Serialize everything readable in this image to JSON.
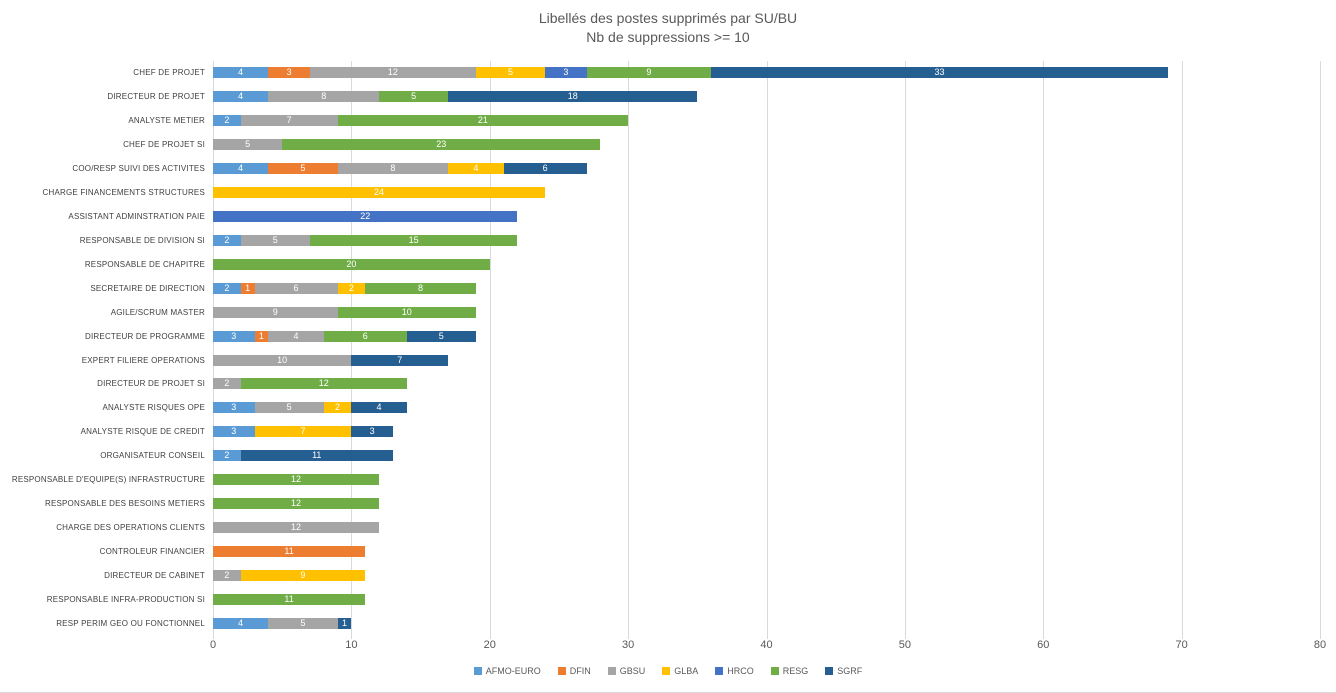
{
  "chart_data": {
    "type": "bar",
    "orientation": "horizontal",
    "stacked": true,
    "title": "Libellés des postes supprimés par SU/BU",
    "subtitle": "Nb de suppressions >= 10",
    "xlim": [
      0,
      80
    ],
    "xticks": [
      0,
      10,
      20,
      30,
      40,
      50,
      60,
      70,
      80
    ],
    "grid": true,
    "legend_position": "bottom",
    "background_color": "#ffffff",
    "gridline_color": "#d9d9d9",
    "title_color": "#595959",
    "legend": [
      {
        "name": "AFMO-EURO",
        "color": "#5B9BD5"
      },
      {
        "name": "DFIN",
        "color": "#ED7D31"
      },
      {
        "name": "GBSU",
        "color": "#A5A5A5"
      },
      {
        "name": "GLBA",
        "color": "#FFC000"
      },
      {
        "name": "HRCO",
        "color": "#4472C4"
      },
      {
        "name": "RESG",
        "color": "#70AD47"
      },
      {
        "name": "SGRF",
        "color": "#255E91"
      }
    ],
    "categories": [
      "CHEF DE PROJET",
      "DIRECTEUR DE PROJET",
      "ANALYSTE METIER",
      "CHEF DE PROJET SI",
      "COO/RESP SUIVI DES ACTIVITES",
      "CHARGE FINANCEMENTS STRUCTURES",
      "ASSISTANT ADMINSTRATION PAIE",
      "RESPONSABLE DE DIVISION SI",
      "RESPONSABLE DE CHAPITRE",
      "SECRETAIRE DE DIRECTION",
      "AGILE/SCRUM MASTER",
      "DIRECTEUR DE PROGRAMME",
      "EXPERT FILIERE OPERATIONS",
      "DIRECTEUR DE PROJET SI",
      "ANALYSTE RISQUES OPE",
      "ANALYSTE RISQUE DE CREDIT",
      "ORGANISATEUR CONSEIL",
      "RESPONSABLE D'EQUIPE(S) INFRASTRUCTURE",
      "RESPONSABLE DES BESOINS METIERS",
      "CHARGE DES OPERATIONS CLIENTS",
      "CONTROLEUR FINANCIER",
      "DIRECTEUR DE CABINET",
      "RESPONSABLE INFRA-PRODUCTION SI",
      "RESP PERIM GEO OU FONCTIONNEL"
    ],
    "series": [
      {
        "name": "AFMO-EURO",
        "values": [
          4,
          4,
          2,
          0,
          4,
          0,
          0,
          2,
          0,
          2,
          0,
          3,
          0,
          0,
          3,
          3,
          2,
          0,
          0,
          0,
          0,
          0,
          0,
          4
        ]
      },
      {
        "name": "DFIN",
        "values": [
          3,
          0,
          0,
          0,
          5,
          0,
          0,
          0,
          0,
          1,
          0,
          1,
          0,
          0,
          0,
          0,
          0,
          0,
          0,
          0,
          11,
          0,
          0,
          0
        ]
      },
      {
        "name": "GBSU",
        "values": [
          12,
          8,
          7,
          5,
          8,
          0,
          0,
          5,
          0,
          6,
          9,
          4,
          10,
          2,
          5,
          0,
          0,
          0,
          0,
          12,
          0,
          2,
          0,
          5
        ]
      },
      {
        "name": "GLBA",
        "values": [
          5,
          0,
          0,
          0,
          4,
          24,
          0,
          0,
          0,
          2,
          0,
          0,
          0,
          0,
          2,
          7,
          0,
          0,
          0,
          0,
          0,
          9,
          0,
          0
        ]
      },
      {
        "name": "HRCO",
        "values": [
          3,
          0,
          0,
          0,
          0,
          0,
          22,
          0,
          0,
          0,
          0,
          0,
          0,
          0,
          0,
          0,
          0,
          0,
          0,
          0,
          0,
          0,
          0,
          0
        ]
      },
      {
        "name": "RESG",
        "values": [
          9,
          5,
          21,
          23,
          0,
          0,
          0,
          15,
          20,
          8,
          10,
          6,
          0,
          12,
          0,
          0,
          0,
          12,
          12,
          0,
          0,
          0,
          11,
          0
        ]
      },
      {
        "name": "SGRF",
        "values": [
          33,
          18,
          0,
          0,
          6,
          0,
          0,
          0,
          0,
          0,
          0,
          5,
          7,
          0,
          4,
          3,
          11,
          0,
          0,
          0,
          0,
          0,
          0,
          1
        ]
      }
    ]
  }
}
